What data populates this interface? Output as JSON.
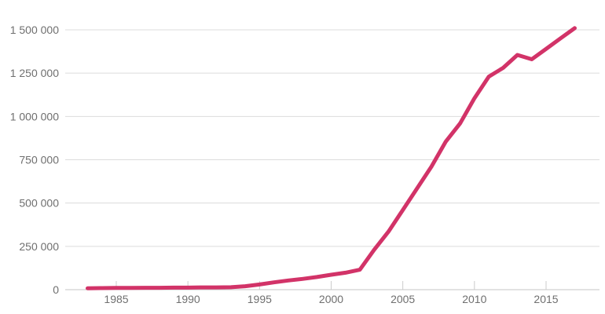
{
  "chart_data": {
    "type": "line",
    "x": [
      1983,
      1984,
      1985,
      1986,
      1987,
      1988,
      1989,
      1990,
      1991,
      1992,
      1993,
      1994,
      1995,
      1996,
      1997,
      1998,
      1999,
      2000,
      2001,
      2002,
      2003,
      2004,
      2005,
      2006,
      2007,
      2008,
      2009,
      2010,
      2011,
      2012,
      2013,
      2014,
      2015,
      2016,
      2017
    ],
    "values": [
      8000,
      9000,
      10000,
      10000,
      11000,
      11000,
      12000,
      12000,
      13000,
      13000,
      14000,
      20000,
      30000,
      42000,
      53000,
      62000,
      73000,
      86000,
      98000,
      115000,
      230000,
      335000,
      460000,
      585000,
      710000,
      855000,
      960000,
      1105000,
      1230000,
      1280000,
      1355000,
      1330000,
      1390000,
      1450000,
      1510000
    ],
    "xticks": [
      1985,
      1990,
      1995,
      2000,
      2005,
      2010,
      2015
    ],
    "xtick_labels": [
      "1985",
      "1990",
      "1995",
      "2000",
      "2005",
      "2010",
      "2015"
    ],
    "yticks": [
      0,
      250000,
      500000,
      750000,
      1000000,
      1250000,
      1500000
    ],
    "ytick_labels": [
      "0",
      "250 000",
      "500 000",
      "750 000",
      "1 000 000",
      "1 250 000",
      "1 500 000"
    ],
    "xlim": [
      1981.4,
      2018.7
    ],
    "ylim": [
      0,
      1500000
    ],
    "grid": true,
    "legend": "none",
    "colors": {
      "line": "#d23368",
      "gridline": "#dcdcdc",
      "axis_line": "#c5c5c5",
      "tick": "#cccccc",
      "label_text": "#6f6f6f",
      "background": "#ffffff"
    }
  }
}
